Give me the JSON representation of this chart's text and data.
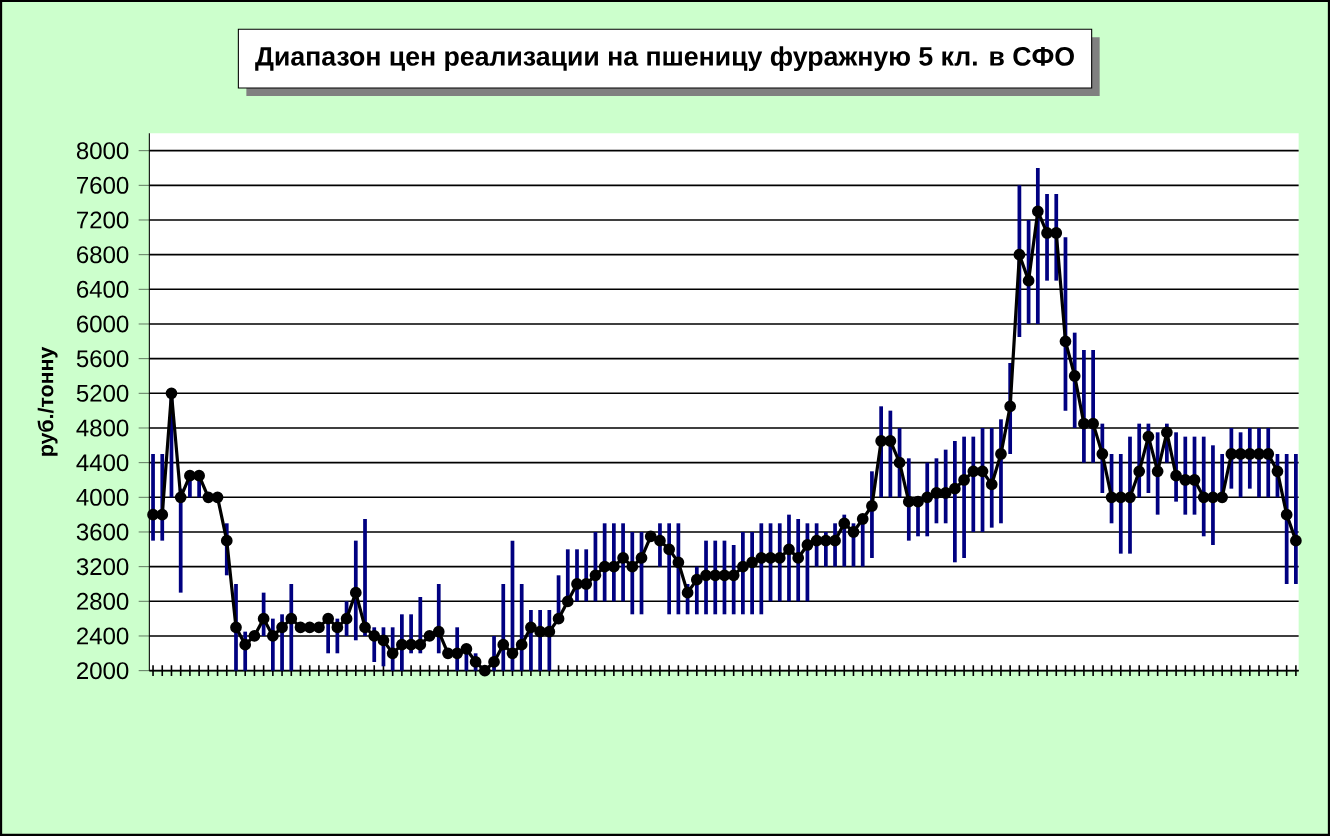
{
  "chart_data": {
    "type": "line",
    "title": "Диапазон цен реализации на пшеницу фуражную 5 кл. в СФО",
    "ylabel": "руб./тонну",
    "categories": [
      null,
      null,
      null,
      null,
      null,
      null,
      null,
      null,
      null,
      null,
      null,
      null,
      null,
      null,
      null,
      null,
      null,
      null,
      null,
      null,
      null,
      null,
      null,
      null,
      null,
      null,
      null,
      null,
      null,
      null,
      null,
      null,
      null,
      null,
      null,
      null,
      null,
      null,
      null,
      null,
      null,
      null,
      null,
      null,
      null,
      null,
      null,
      null,
      null,
      null,
      null,
      null,
      null,
      null,
      null,
      null,
      null,
      null,
      null,
      null,
      null,
      null,
      null,
      null,
      null,
      null,
      null,
      null,
      null,
      null,
      null,
      null,
      null,
      null,
      null,
      null,
      null,
      null,
      null,
      null,
      null,
      null,
      null,
      null,
      null,
      null,
      null,
      null,
      null,
      null,
      null,
      null,
      null,
      null,
      null,
      null,
      null,
      null,
      null,
      null,
      null,
      null,
      null,
      null,
      null,
      null,
      null,
      null,
      null,
      null,
      null,
      null,
      null,
      null,
      null,
      null,
      null,
      null,
      null,
      null,
      null,
      null,
      null,
      null,
      null
    ],
    "series": [
      {
        "color": "#000000",
        "values": [
          3800,
          3800,
          5200,
          4000,
          4250,
          4250,
          4000,
          4000,
          3500,
          2500,
          2300,
          2400,
          2600,
          2400,
          2500,
          2600,
          2500,
          2500,
          2500,
          2600,
          2500,
          2600,
          2900,
          2500,
          2400,
          2350,
          2200,
          2300,
          2300,
          2300,
          2400,
          2450,
          2200,
          2200,
          2250,
          2100,
          2000,
          2100,
          2300,
          2200,
          2300,
          2500,
          2450,
          2450,
          2600,
          2800,
          3000,
          3000,
          3100,
          3200,
          3200,
          3300,
          3200,
          3300,
          3550,
          3500,
          3400,
          3250,
          2900,
          3050,
          3100,
          3100,
          3100,
          3100,
          3200,
          3250,
          3300,
          3300,
          3300,
          3400,
          3300,
          3450,
          3500,
          3500,
          3500,
          3700,
          3600,
          3750,
          3900,
          4650,
          4650,
          4400,
          3950,
          3950,
          4000,
          4050,
          4050,
          4100,
          4200,
          4300,
          4300,
          4150,
          4500,
          5050,
          6800,
          6500,
          7300,
          7050,
          7050,
          5800,
          5400,
          4850,
          4850,
          4500,
          4000,
          4000,
          4000,
          4300,
          4700,
          4300,
          4750,
          4250,
          4200,
          4200,
          4000,
          4000,
          4000,
          4500,
          4500,
          4500,
          4500,
          4500,
          4300,
          3800,
          3500
        ],
        "errors": [
          [
            3500,
            4500
          ],
          [
            3500,
            4500
          ],
          [
            4000,
            5250
          ],
          [
            2900,
            4100
          ],
          [
            4000,
            4250
          ],
          [
            4000,
            4250
          ],
          null,
          null,
          [
            3100,
            3700
          ],
          [
            2000,
            3000
          ],
          [
            2000,
            2450
          ],
          null,
          [
            2400,
            2900
          ],
          [
            2000,
            2600
          ],
          [
            2000,
            2650
          ],
          [
            2000,
            3000
          ],
          null,
          null,
          null,
          [
            2200,
            2600
          ],
          [
            2200,
            2600
          ],
          [
            2400,
            2800
          ],
          [
            2350,
            3500
          ],
          [
            2400,
            3750
          ],
          [
            2100,
            2500
          ],
          [
            2050,
            2500
          ],
          [
            2000,
            2500
          ],
          [
            2000,
            2650
          ],
          [
            2200,
            2650
          ],
          [
            2200,
            2850
          ],
          null,
          [
            2200,
            3000
          ],
          null,
          [
            2000,
            2500
          ],
          [
            2000,
            2300
          ],
          [
            2000,
            2200
          ],
          null,
          [
            2000,
            2400
          ],
          [
            2000,
            3000
          ],
          [
            2000,
            3500
          ],
          [
            2000,
            3000
          ],
          [
            2000,
            2700
          ],
          [
            2000,
            2700
          ],
          [
            2000,
            2700
          ],
          [
            2600,
            3100
          ],
          [
            2800,
            3400
          ],
          [
            2800,
            3400
          ],
          [
            2800,
            3400
          ],
          [
            2800,
            3600
          ],
          [
            2800,
            3700
          ],
          [
            2800,
            3700
          ],
          [
            2800,
            3700
          ],
          [
            2650,
            3600
          ],
          [
            2650,
            3600
          ],
          null,
          [
            3200,
            3700
          ],
          [
            2650,
            3700
          ],
          [
            2650,
            3700
          ],
          [
            2650,
            3000
          ],
          [
            2650,
            3200
          ],
          [
            2650,
            3500
          ],
          [
            2650,
            3500
          ],
          [
            2650,
            3500
          ],
          [
            2650,
            3450
          ],
          [
            2650,
            3600
          ],
          [
            2650,
            3600
          ],
          [
            2650,
            3700
          ],
          [
            2800,
            3700
          ],
          [
            2800,
            3700
          ],
          [
            2800,
            3800
          ],
          [
            2800,
            3750
          ],
          [
            2800,
            3700
          ],
          [
            3200,
            3700
          ],
          [
            3200,
            3600
          ],
          [
            3200,
            3700
          ],
          [
            3200,
            3800
          ],
          [
            3200,
            3700
          ],
          [
            3200,
            3750
          ],
          [
            3300,
            4300
          ],
          [
            4000,
            5050
          ],
          [
            4000,
            5000
          ],
          [
            4000,
            4800
          ],
          [
            3500,
            4450
          ],
          [
            3550,
            4000
          ],
          [
            3550,
            4400
          ],
          [
            3700,
            4450
          ],
          [
            3700,
            4550
          ],
          [
            3250,
            4650
          ],
          [
            3300,
            4700
          ],
          [
            3600,
            4700
          ],
          [
            3600,
            4800
          ],
          [
            3650,
            4800
          ],
          [
            3700,
            4900
          ],
          [
            4500,
            5550
          ],
          [
            5850,
            7600
          ],
          [
            6000,
            7200
          ],
          [
            6000,
            7800
          ],
          [
            6500,
            7500
          ],
          [
            6500,
            7500
          ],
          [
            5000,
            7000
          ],
          [
            4800,
            5900
          ],
          [
            4400,
            5700
          ],
          [
            4400,
            5700
          ],
          [
            4050,
            4850
          ],
          [
            3700,
            4500
          ],
          [
            3350,
            4500
          ],
          [
            3350,
            4700
          ],
          [
            4000,
            4850
          ],
          [
            4050,
            4850
          ],
          [
            3800,
            4750
          ],
          [
            4400,
            4850
          ],
          [
            3950,
            4750
          ],
          [
            3800,
            4700
          ],
          [
            3800,
            4700
          ],
          [
            3550,
            4700
          ],
          [
            3450,
            4600
          ],
          [
            4000,
            4500
          ],
          [
            4100,
            4800
          ],
          [
            4000,
            4750
          ],
          [
            4100,
            4800
          ],
          [
            4000,
            4800
          ],
          [
            4000,
            4800
          ],
          [
            4000,
            4500
          ],
          [
            3000,
            4500
          ],
          [
            3000,
            4500
          ]
        ]
      }
    ],
    "ylim": [
      2000,
      8200
    ],
    "yticks": [
      2000,
      2400,
      2800,
      3200,
      3600,
      4000,
      4400,
      4800,
      5200,
      5600,
      6000,
      6400,
      6800,
      7200,
      7600,
      8000
    ],
    "grid": "y",
    "marker": "circle",
    "tick_labels": "y"
  }
}
